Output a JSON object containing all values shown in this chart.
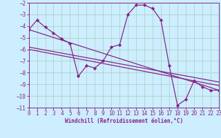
{
  "background_color": "#cceeff",
  "grid_color": "#aaccbb",
  "line_color": "#882288",
  "xlabel": "Windchill (Refroidissement éolien,°C)",
  "xlim": [
    0,
    23
  ],
  "ylim": [
    -11,
    -2
  ],
  "xticks": [
    0,
    1,
    2,
    3,
    4,
    5,
    6,
    7,
    8,
    9,
    10,
    11,
    12,
    13,
    14,
    15,
    16,
    17,
    18,
    19,
    20,
    21,
    22,
    23
  ],
  "yticks": [
    -2,
    -3,
    -4,
    -5,
    -6,
    -7,
    -8,
    -9,
    -10,
    -11
  ],
  "series": [
    [
      0,
      -4.3
    ],
    [
      1,
      -3.5
    ],
    [
      2,
      -4.1
    ],
    [
      3,
      -4.6
    ],
    [
      4,
      -5.1
    ],
    [
      5,
      -5.5
    ],
    [
      6,
      -8.3
    ],
    [
      7,
      -7.4
    ],
    [
      8,
      -7.6
    ],
    [
      9,
      -7.0
    ],
    [
      10,
      -5.8
    ],
    [
      11,
      -5.6
    ],
    [
      12,
      -3.0
    ],
    [
      13,
      -2.2
    ],
    [
      14,
      -2.2
    ],
    [
      15,
      -2.5
    ],
    [
      16,
      -3.5
    ],
    [
      17,
      -7.4
    ],
    [
      18,
      -10.8
    ],
    [
      19,
      -10.3
    ],
    [
      20,
      -8.7
    ],
    [
      21,
      -9.2
    ],
    [
      22,
      -9.5
    ],
    [
      23,
      -9.5
    ]
  ],
  "trend_lines": [
    [
      [
        0,
        -4.3
      ],
      [
        23,
        -9.5
      ]
    ],
    [
      [
        0,
        -5.8
      ],
      [
        23,
        -8.8
      ]
    ],
    [
      [
        0,
        -6.0
      ],
      [
        23,
        -9.1
      ]
    ]
  ],
  "tick_fontsize": 5.5,
  "xlabel_fontsize": 5.5,
  "linewidth": 0.9,
  "markersize": 2.2
}
